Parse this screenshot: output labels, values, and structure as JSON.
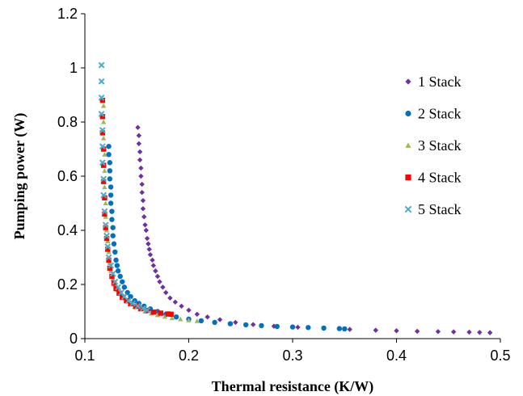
{
  "chart_data": {
    "type": "scatter",
    "title": "",
    "xlabel": "Thermal resistance (K/W)",
    "ylabel": "Pumping power (W)",
    "xlim": [
      0.1,
      0.5
    ],
    "ylim": [
      0,
      1.2
    ],
    "xticks": [
      "0.1",
      "0.2",
      "0.3",
      "0.4",
      "0.5"
    ],
    "yticks": [
      "0",
      "0.2",
      "0.4",
      "0.6",
      "0.8",
      "1",
      "1.2"
    ],
    "grid": false,
    "legend_position": "right",
    "series": [
      {
        "name": "1 Stack",
        "color": "#7030A0",
        "marker": "diamond",
        "x": [
          0.151,
          0.152,
          0.152,
          0.153,
          0.153,
          0.154,
          0.154,
          0.155,
          0.155,
          0.156,
          0.156,
          0.157,
          0.158,
          0.159,
          0.16,
          0.161,
          0.162,
          0.163,
          0.165,
          0.166,
          0.168,
          0.17,
          0.172,
          0.175,
          0.178,
          0.182,
          0.187,
          0.193,
          0.2,
          0.208,
          0.218,
          0.23,
          0.245,
          0.262,
          0.282,
          0.305,
          0.33,
          0.355,
          0.38,
          0.4,
          0.42,
          0.44,
          0.455,
          0.47,
          0.48,
          0.49
        ],
        "y": [
          0.78,
          0.75,
          0.72,
          0.69,
          0.66,
          0.63,
          0.6,
          0.57,
          0.54,
          0.51,
          0.48,
          0.45,
          0.42,
          0.4,
          0.37,
          0.35,
          0.33,
          0.31,
          0.29,
          0.27,
          0.25,
          0.23,
          0.21,
          0.19,
          0.17,
          0.15,
          0.135,
          0.12,
          0.105,
          0.09,
          0.08,
          0.07,
          0.06,
          0.052,
          0.046,
          0.042,
          0.038,
          0.034,
          0.031,
          0.029,
          0.027,
          0.026,
          0.025,
          0.024,
          0.023,
          0.022
        ]
      },
      {
        "name": "2 Stack",
        "color": "#0070C0",
        "marker": "circle",
        "x": [
          0.123,
          0.123,
          0.124,
          0.124,
          0.124,
          0.125,
          0.125,
          0.125,
          0.126,
          0.126,
          0.127,
          0.127,
          0.128,
          0.129,
          0.13,
          0.131,
          0.132,
          0.134,
          0.136,
          0.138,
          0.141,
          0.144,
          0.148,
          0.152,
          0.157,
          0.163,
          0.17,
          0.178,
          0.188,
          0.2,
          0.212,
          0.225,
          0.24,
          0.255,
          0.27,
          0.285,
          0.3,
          0.315,
          0.33,
          0.345,
          0.35
        ],
        "y": [
          0.71,
          0.68,
          0.65,
          0.62,
          0.59,
          0.56,
          0.53,
          0.5,
          0.47,
          0.44,
          0.41,
          0.38,
          0.35,
          0.32,
          0.29,
          0.27,
          0.25,
          0.23,
          0.21,
          0.19,
          0.17,
          0.155,
          0.14,
          0.13,
          0.12,
          0.11,
          0.1,
          0.09,
          0.08,
          0.072,
          0.066,
          0.06,
          0.055,
          0.051,
          0.048,
          0.045,
          0.043,
          0.041,
          0.039,
          0.037,
          0.036
        ]
      },
      {
        "name": "3 Stack",
        "color": "#9BBB59",
        "marker": "triangle",
        "x": [
          0.118,
          0.118,
          0.118,
          0.119,
          0.119,
          0.119,
          0.12,
          0.12,
          0.121,
          0.122,
          0.123,
          0.124,
          0.125,
          0.127,
          0.129,
          0.131,
          0.134,
          0.137,
          0.14,
          0.144,
          0.148,
          0.153,
          0.158,
          0.164,
          0.17,
          0.177,
          0.184,
          0.192,
          0.2,
          0.208
        ],
        "y": [
          0.86,
          0.8,
          0.74,
          0.68,
          0.62,
          0.56,
          0.5,
          0.45,
          0.4,
          0.36,
          0.32,
          0.28,
          0.25,
          0.22,
          0.2,
          0.18,
          0.165,
          0.15,
          0.138,
          0.127,
          0.117,
          0.108,
          0.1,
          0.093,
          0.087,
          0.081,
          0.076,
          0.072,
          0.068,
          0.065
        ]
      },
      {
        "name": "4 Stack",
        "color": "#FF0000",
        "marker": "square",
        "x": [
          0.117,
          0.117,
          0.117,
          0.118,
          0.118,
          0.118,
          0.119,
          0.119,
          0.12,
          0.121,
          0.122,
          0.123,
          0.124,
          0.126,
          0.128,
          0.13,
          0.133,
          0.136,
          0.14,
          0.144,
          0.149,
          0.154,
          0.16,
          0.166,
          0.173,
          0.18,
          0.183
        ],
        "y": [
          0.88,
          0.82,
          0.76,
          0.7,
          0.64,
          0.58,
          0.52,
          0.46,
          0.41,
          0.37,
          0.33,
          0.29,
          0.26,
          0.23,
          0.205,
          0.185,
          0.168,
          0.153,
          0.14,
          0.129,
          0.119,
          0.111,
          0.104,
          0.098,
          0.094,
          0.091,
          0.09
        ]
      },
      {
        "name": "5 Stack",
        "color": "#4BACC6",
        "marker": "x",
        "x": [
          0.116,
          0.116,
          0.116,
          0.116,
          0.117,
          0.117,
          0.117,
          0.118,
          0.118,
          0.119,
          0.12,
          0.121,
          0.122,
          0.123,
          0.125,
          0.127,
          0.129,
          0.132,
          0.135,
          0.138,
          0.142,
          0.146,
          0.151,
          0.156,
          0.16
        ],
        "y": [
          1.01,
          0.95,
          0.89,
          0.83,
          0.77,
          0.71,
          0.65,
          0.59,
          0.53,
          0.47,
          0.42,
          0.38,
          0.34,
          0.3,
          0.27,
          0.24,
          0.21,
          0.19,
          0.17,
          0.155,
          0.14,
          0.13,
          0.12,
          0.112,
          0.105
        ]
      }
    ]
  }
}
